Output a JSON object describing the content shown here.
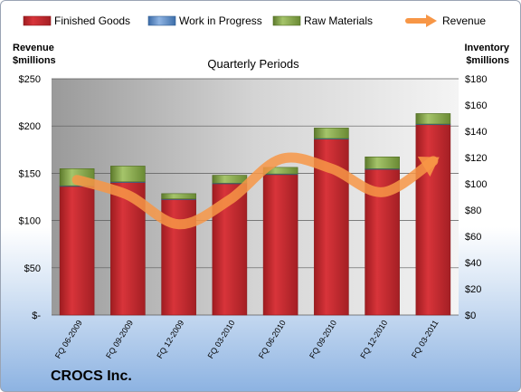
{
  "chart_data": {
    "type": "bar",
    "subtitle": "Quarterly Periods",
    "company": "CROCS Inc.",
    "categories": [
      "FQ 06-2009",
      "FQ 09-2009",
      "FQ 12-2009",
      "FQ 03-2010",
      "FQ 06-2010",
      "FQ 09-2010",
      "FQ 12-2010",
      "FQ 03-2011"
    ],
    "stacked": true,
    "series": [
      {
        "name": "Finished Goods",
        "axis": "right",
        "color": "#c0262b",
        "values": [
          98,
          101,
          88,
          100,
          107,
          134,
          111,
          145
        ]
      },
      {
        "name": "Work in Progress",
        "axis": "right",
        "color": "#4f81bd",
        "values": [
          0.5,
          0.5,
          0.5,
          0.5,
          0.5,
          0.5,
          0.5,
          0.5
        ]
      },
      {
        "name": "Raw Materials",
        "axis": "right",
        "color": "#77933c",
        "values": [
          13,
          12,
          4,
          6,
          5,
          8,
          9,
          8
        ]
      },
      {
        "name": "Revenue",
        "axis": "left",
        "type": "line",
        "color": "#f79646",
        "values": [
          143,
          127,
          96,
          122,
          165,
          155,
          130,
          163
        ]
      }
    ],
    "left_axis": {
      "label_line1": "Revenue",
      "label_line2": "$millions",
      "ylim": [
        0,
        250
      ],
      "ticks": [
        "$-",
        "$50",
        "$100",
        "$150",
        "$200",
        "$250"
      ]
    },
    "right_axis": {
      "label_line1": "Inventory",
      "label_line2": "$millions",
      "ylim": [
        0,
        180
      ],
      "ticks": [
        "$0",
        "$20",
        "$40",
        "$60",
        "$80",
        "$100",
        "$120",
        "$140",
        "$160",
        "$180"
      ]
    },
    "legend_position": "top",
    "grid": true
  }
}
